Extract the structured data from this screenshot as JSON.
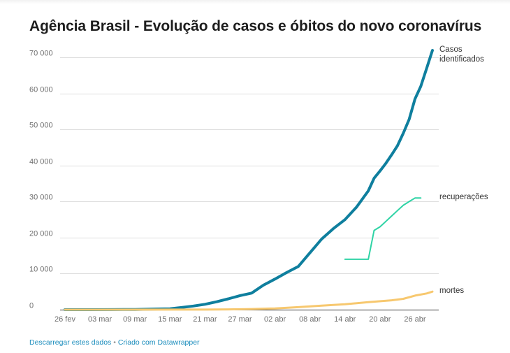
{
  "chart_data": {
    "type": "line",
    "title": "Agência Brasil - Evolução de casos e óbitos do novo coronavírus",
    "xlabel": "",
    "ylabel": "",
    "x_start": "26 fev",
    "x_end": "29 abr",
    "x_ticks": [
      {
        "day": 0,
        "label": "26 fev"
      },
      {
        "day": 6,
        "label": "03 mar"
      },
      {
        "day": 12,
        "label": "09 mar"
      },
      {
        "day": 18,
        "label": "15 mar"
      },
      {
        "day": 24,
        "label": "21 mar"
      },
      {
        "day": 30,
        "label": "27 mar"
      },
      {
        "day": 36,
        "label": "02 abr"
      },
      {
        "day": 42,
        "label": "08 abr"
      },
      {
        "day": 48,
        "label": "14 abr"
      },
      {
        "day": 54,
        "label": "20 abr"
      },
      {
        "day": 60,
        "label": "26 abr"
      }
    ],
    "y_ticks": [
      {
        "value": 0,
        "label": "0"
      },
      {
        "value": 10000,
        "label": "10 000"
      },
      {
        "value": 20000,
        "label": "20 000"
      },
      {
        "value": 30000,
        "label": "30 000"
      },
      {
        "value": 40000,
        "label": "40 000"
      },
      {
        "value": 50000,
        "label": "50 000"
      },
      {
        "value": 60000,
        "label": "60 000"
      },
      {
        "value": 70000,
        "label": "70 000"
      }
    ],
    "xlim": [
      0,
      63
    ],
    "ylim": [
      0,
      72000
    ],
    "grid": true,
    "series": [
      {
        "name": "Casos identificados",
        "label_lines": [
          "Casos",
          "identificados"
        ],
        "color": "#0f7f9e",
        "points": [
          [
            0,
            1
          ],
          [
            8,
            20
          ],
          [
            10,
            30
          ],
          [
            12,
            40
          ],
          [
            14,
            120
          ],
          [
            16,
            200
          ],
          [
            18,
            250
          ],
          [
            20,
            600
          ],
          [
            22,
            1000
          ],
          [
            24,
            1500
          ],
          [
            26,
            2200
          ],
          [
            28,
            3000
          ],
          [
            30,
            3900
          ],
          [
            32,
            4600
          ],
          [
            34,
            6800
          ],
          [
            36,
            8500
          ],
          [
            38,
            10300
          ],
          [
            40,
            12000
          ],
          [
            42,
            15800
          ],
          [
            44,
            19600
          ],
          [
            46,
            22500
          ],
          [
            48,
            25000
          ],
          [
            50,
            28500
          ],
          [
            52,
            33000
          ],
          [
            53,
            36500
          ],
          [
            54,
            38500
          ],
          [
            55,
            40600
          ],
          [
            56,
            43000
          ],
          [
            57,
            45500
          ],
          [
            58,
            49000
          ],
          [
            59,
            52800
          ],
          [
            60,
            58500
          ],
          [
            61,
            62000
          ],
          [
            62,
            67000
          ],
          [
            63,
            72000
          ]
        ]
      },
      {
        "name": "recuperações",
        "label_lines": [
          "recuperações"
        ],
        "color": "#2ed3a5",
        "points": [
          [
            48,
            14000
          ],
          [
            52,
            14000
          ],
          [
            53,
            22000
          ],
          [
            54,
            23000
          ],
          [
            55,
            24500
          ],
          [
            56,
            26000
          ],
          [
            57,
            27500
          ],
          [
            58,
            29000
          ],
          [
            59,
            30000
          ],
          [
            60,
            31000
          ],
          [
            61,
            31000
          ]
        ]
      },
      {
        "name": "mortes",
        "label_lines": [
          "mortes"
        ],
        "color": "#f7c86f",
        "points": [
          [
            0,
            0
          ],
          [
            24,
            10
          ],
          [
            28,
            80
          ],
          [
            32,
            170
          ],
          [
            36,
            350
          ],
          [
            40,
            700
          ],
          [
            44,
            1100
          ],
          [
            48,
            1500
          ],
          [
            52,
            2100
          ],
          [
            56,
            2600
          ],
          [
            58,
            3000
          ],
          [
            60,
            3900
          ],
          [
            62,
            4500
          ],
          [
            63,
            5000
          ]
        ]
      }
    ]
  },
  "footer": {
    "download_label": "Descarregar estes dados",
    "separator": "•",
    "credit_label": "Criado com Datawrapper"
  }
}
